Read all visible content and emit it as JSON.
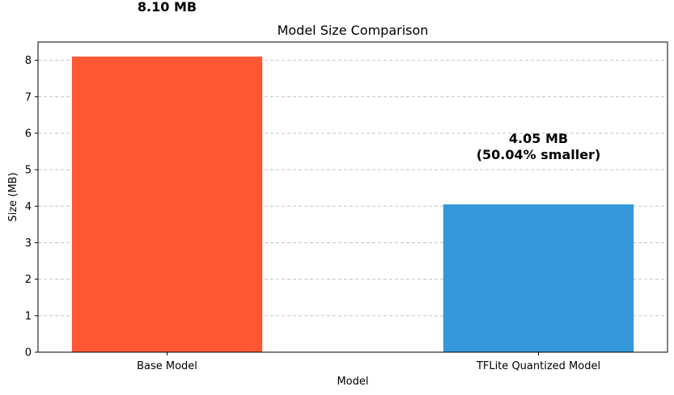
{
  "chart_data": {
    "type": "bar",
    "title": "Model Size Comparison",
    "xlabel": "Model",
    "ylabel": "Size (MB)",
    "categories": [
      "Base Model",
      "TFLite Quantized Model"
    ],
    "values": [
      8.1,
      4.05
    ],
    "colors": [
      "#ff5733",
      "#3498db"
    ],
    "data_labels": [
      "8.10 MB",
      "4.05 MB\n(50.04% smaller)"
    ],
    "ylim": [
      0,
      8.5
    ],
    "yticks": [
      0,
      1,
      2,
      3,
      4,
      5,
      6,
      7,
      8
    ],
    "grid": "y-dashed",
    "legend": "none"
  }
}
